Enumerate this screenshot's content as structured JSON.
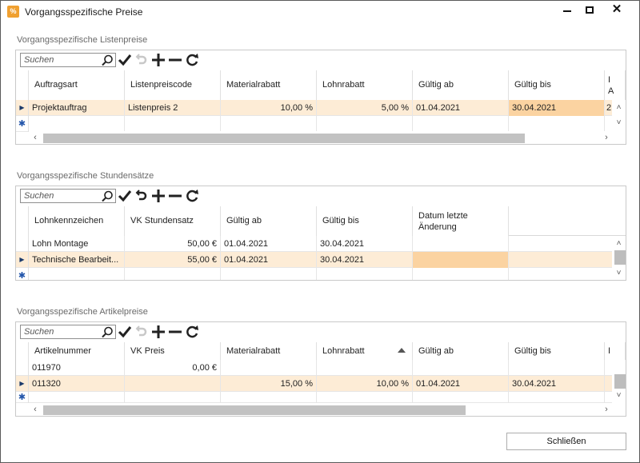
{
  "window": {
    "title": "Vorgangsspezifische Preise",
    "close_button_label": "Schließen"
  },
  "search_placeholder": "Suchen",
  "listenpreise": {
    "label": "Vorgangsspezifische Listenpreise",
    "columns": [
      "Auftragsart",
      "Listenpreiscode",
      "Materialrabatt",
      "Lohnrabatt",
      "Gültig ab",
      "Gültig bis"
    ],
    "overflow_header": "I\nA",
    "rows": [
      {
        "auftragsart": "Projektauftrag",
        "listenpreiscode": "Listenpreis 2",
        "materialrabatt": "10,00 %",
        "lohnrabatt": "5,00 %",
        "gueltig_ab": "01.04.2021",
        "gueltig_bis": "30.04.2021",
        "overflow": "2"
      }
    ]
  },
  "stundensaetze": {
    "label": "Vorgangsspezifische Stundensätze",
    "columns": [
      "Lohnkennzeichen",
      "VK Stundensatz",
      "Gültig ab",
      "Gültig bis",
      "Datum letzte Änderung"
    ],
    "rows": [
      {
        "lohnkennzeichen": "Lohn Montage",
        "vk_stundensatz": "50,00 €",
        "gueltig_ab": "01.04.2021",
        "gueltig_bis": "30.04.2021",
        "datum": ""
      },
      {
        "lohnkennzeichen": "Technische Bearbeit...",
        "vk_stundensatz": "55,00 €",
        "gueltig_ab": "01.04.2021",
        "gueltig_bis": "30.04.2021",
        "datum": ""
      }
    ]
  },
  "artikelpreise": {
    "label": "Vorgangsspezifische Artikelpreise",
    "columns": [
      "Artikelnummer",
      "VK Preis",
      "Materialrabatt",
      "Lohnrabatt",
      "Gültig ab",
      "Gültig bis"
    ],
    "overflow_header": "I",
    "rows": [
      {
        "artikelnummer": "011970",
        "vk_preis": "0,00 €",
        "materialrabatt": "",
        "lohnrabatt": "",
        "gueltig_ab": "",
        "gueltig_bis": ""
      },
      {
        "artikelnummer": "011320",
        "vk_preis": "",
        "materialrabatt": "15,00 %",
        "lohnrabatt": "10,00 %",
        "gueltig_ab": "01.04.2021",
        "gueltig_bis": "30.04.2021"
      }
    ]
  },
  "icons": {
    "app": "price-tag-icon",
    "search": "magnifier-icon",
    "save": "checkmark-icon",
    "undo": "undo-icon",
    "add": "plus-icon",
    "remove": "minus-icon",
    "refresh": "refresh-icon"
  },
  "colors": {
    "selected_row": "#fdecd6",
    "highlight_cell": "#fbd3a1",
    "app_icon": "#f0a030"
  }
}
